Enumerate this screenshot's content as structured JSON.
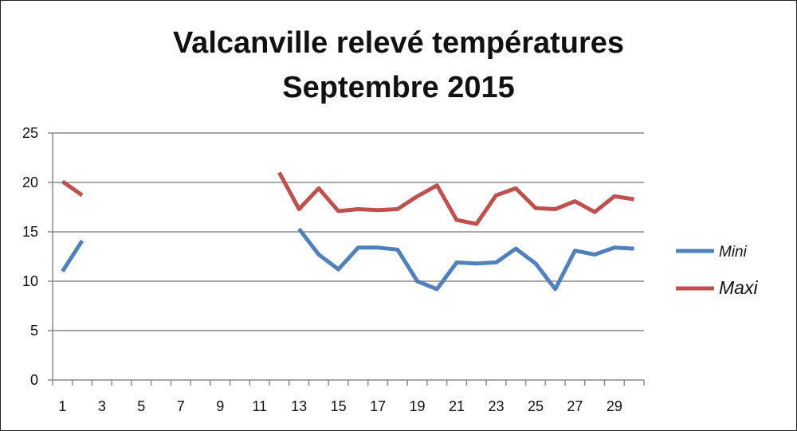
{
  "chart_data": {
    "type": "line",
    "title_lines": [
      "Valcanville relevé températures",
      "Septembre 2015"
    ],
    "xlabel": "",
    "ylabel": "",
    "x": [
      1,
      2,
      3,
      4,
      5,
      6,
      7,
      8,
      9,
      10,
      11,
      12,
      13,
      14,
      15,
      16,
      17,
      18,
      19,
      20,
      21,
      22,
      23,
      24,
      25,
      26,
      27,
      28,
      29,
      30
    ],
    "x_tick_labels": [
      "1",
      "3",
      "5",
      "7",
      "9",
      "11",
      "13",
      "15",
      "17",
      "19",
      "21",
      "23",
      "25",
      "27",
      "29"
    ],
    "y_tick_labels": [
      "0",
      "5",
      "10",
      "15",
      "20",
      "25"
    ],
    "ylim": [
      0,
      25
    ],
    "grid": "horizontal",
    "legend_position": "right",
    "series": [
      {
        "name": "Mini",
        "color": "#4f81bd",
        "values": [
          11.0,
          14.1,
          null,
          null,
          null,
          null,
          null,
          null,
          null,
          null,
          null,
          null,
          15.3,
          12.7,
          11.2,
          13.4,
          13.4,
          13.2,
          10.0,
          9.2,
          11.9,
          11.8,
          11.9,
          13.3,
          11.8,
          9.2,
          13.1,
          12.7,
          13.4,
          13.3
        ]
      },
      {
        "name": "Maxi",
        "color": "#c0504d",
        "values": [
          20.1,
          18.7,
          null,
          null,
          null,
          null,
          null,
          null,
          null,
          null,
          null,
          21.0,
          17.3,
          19.4,
          17.1,
          17.3,
          17.2,
          17.3,
          18.6,
          19.7,
          16.2,
          15.8,
          18.7,
          19.4,
          17.4,
          17.3,
          18.1,
          17.0,
          18.6,
          18.3
        ]
      }
    ]
  }
}
